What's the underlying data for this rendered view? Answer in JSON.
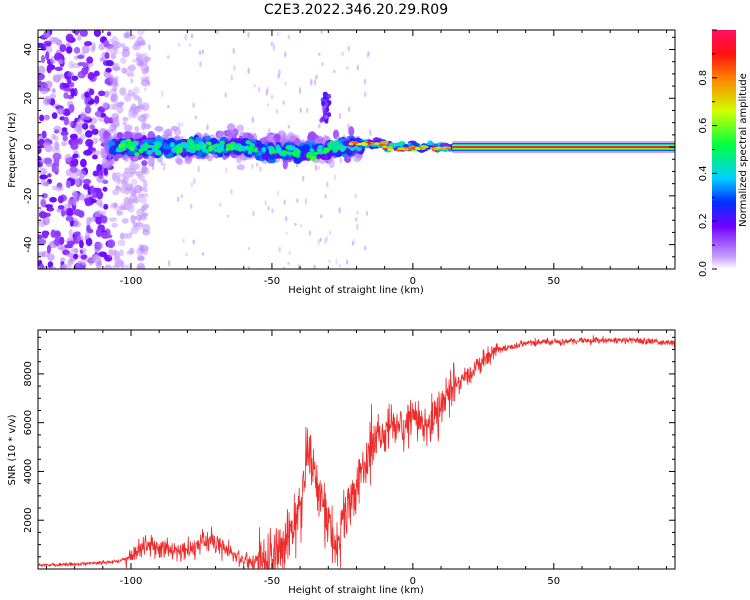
{
  "title": "C2E3.2022.346.20.29.R09",
  "colors": {
    "snr_line": "#ee2a2a",
    "frame": "#000000"
  },
  "chart_data": [
    {
      "type": "heatmap",
      "name": "spectrogram",
      "xlabel": "Height of straight line (km)",
      "ylabel": "Frequency (Hz)",
      "xlim": [
        -133,
        93
      ],
      "ylim": [
        -50,
        48
      ],
      "x_ticks": [
        -100,
        -50,
        0,
        50
      ],
      "x_tick_labels": [
        "-100",
        "-50",
        "0",
        "50"
      ],
      "y_ticks": [
        -40,
        -20,
        0,
        20,
        40
      ],
      "y_tick_labels": [
        "-40",
        "-20",
        "0",
        "20",
        "40"
      ],
      "colorbar": {
        "label": "Normalized spectral amplitude",
        "range": [
          0,
          1
        ],
        "ticks": [
          0,
          0.2,
          0.4,
          0.6,
          0.8
        ],
        "tick_labels": [
          "0.0",
          "0.2",
          "0.4",
          "0.6",
          "0.8"
        ],
        "colormap": "rainbow"
      },
      "features": {
        "noise_region_x": [
          -133,
          -102
        ],
        "scatter_region_x": [
          -110,
          -18
        ],
        "carrier_frequency_hz": 0,
        "steady_tone_start_x": 14
      }
    },
    {
      "type": "line",
      "name": "snr",
      "xlabel": "Height of straight line (km)",
      "ylabel": "SNR (10 * v/v)",
      "xlim": [
        -133,
        93
      ],
      "ylim": [
        0,
        9800
      ],
      "x_ticks": [
        -100,
        -50,
        0,
        50
      ],
      "x_tick_labels": [
        "-100",
        "-50",
        "0",
        "50"
      ],
      "y_ticks": [
        2000,
        4000,
        6000,
        8000
      ],
      "y_tick_labels": [
        "2000",
        "4000",
        "6000",
        "8000"
      ],
      "series": [
        {
          "name": "SNR",
          "color": "#ee2a2a",
          "x": [
            -133,
            -120,
            -105,
            -100,
            -98,
            -95,
            -90,
            -80,
            -75,
            -72,
            -68,
            -60,
            -52,
            -45,
            -40,
            -37,
            -35,
            -33,
            -30,
            -27,
            -25,
            -20,
            -15,
            -12,
            -10,
            -8,
            -5,
            0,
            5,
            8,
            10,
            12,
            15,
            20,
            25,
            30,
            35,
            40,
            50,
            60,
            70,
            80,
            90,
            93
          ],
          "y": [
            150,
            200,
            300,
            500,
            700,
            1000,
            900,
            700,
            1000,
            1200,
            900,
            400,
            300,
            1200,
            2500,
            4500,
            4000,
            3000,
            2000,
            1000,
            1800,
            3500,
            4500,
            5800,
            5200,
            6000,
            5500,
            6500,
            5800,
            6200,
            6800,
            7200,
            7600,
            8000,
            8600,
            9000,
            9100,
            9250,
            9300,
            9350,
            9400,
            9350,
            9300,
            9250
          ]
        }
      ]
    }
  ]
}
